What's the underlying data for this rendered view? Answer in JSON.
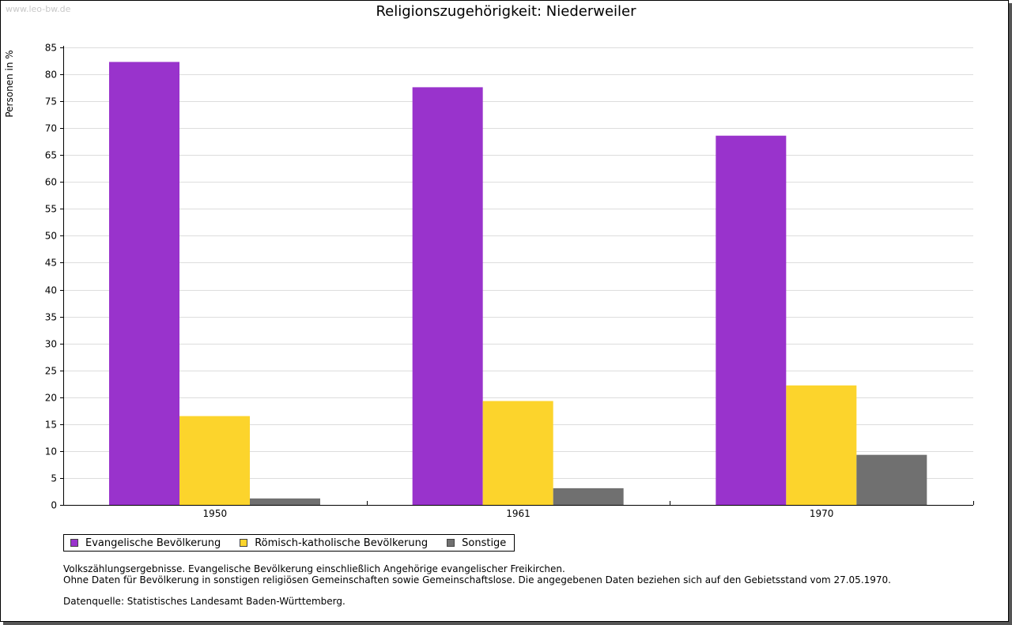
{
  "watermark": "www.leo-bw.de",
  "chart_data": {
    "type": "bar",
    "title": "Religionszugehörigkeit: Niederweiler",
    "xlabel": "",
    "ylabel": "Personen in %",
    "ylim": [
      0,
      85
    ],
    "ytick_step": 5,
    "yticks": [
      "0",
      "5",
      "10",
      "15",
      "20",
      "25",
      "30",
      "35",
      "40",
      "45",
      "50",
      "55",
      "60",
      "65",
      "70",
      "75",
      "80",
      "85"
    ],
    "grid": true,
    "categories": [
      "1950",
      "1961",
      "1970"
    ],
    "series": [
      {
        "name": "Evangelische Bevölkerung",
        "color": "#9933cc",
        "values": [
          82.3,
          77.6,
          68.6
        ]
      },
      {
        "name": "Römisch-katholische Bevölkerung",
        "color": "#fcd42c",
        "values": [
          16.5,
          19.3,
          22.2
        ]
      },
      {
        "name": "Sonstige",
        "color": "#707070",
        "values": [
          1.2,
          3.1,
          9.3
        ]
      }
    ],
    "legend_position": "bottom-left"
  },
  "notes": {
    "line1": "Volkszählungsergebnisse. Evangelische Bevölkerung einschließlich Angehörige evangelischer Freikirchen.",
    "line2": "Ohne Daten für Bevölkerung in sonstigen religiösen Gemeinschaften sowie Gemeinschaftslose. Die angegebenen Daten beziehen sich auf den Gebietsstand vom 27.05.1970.",
    "source": "Datenquelle: Statistisches Landesamt Baden-Württemberg."
  }
}
